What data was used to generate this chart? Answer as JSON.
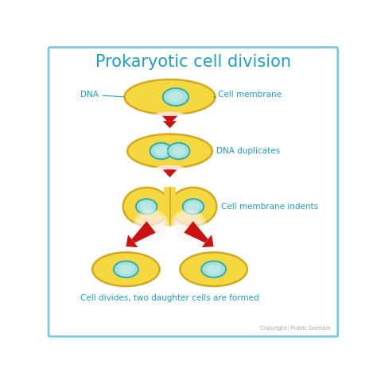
{
  "title": "Prokaryotic cell division",
  "title_color": "#1B9FCC",
  "title_fontsize": 15,
  "bg_color": "#FFFFFF",
  "border_color": "#7DC8E0",
  "text_color": "#1B9FCC",
  "cell_fill": "#F5D840",
  "cell_edge": "#D4A820",
  "dna_fill_alpha": 0.25,
  "dna_stroke": "#2AAFAF",
  "arrow_color": "#CC1111",
  "label_dna": "DNA",
  "label_membrane": "Cell membrane",
  "label_stage2": "DNA duplicates",
  "label_stage3": "Cell membrane indents",
  "label_stage4": "Cell divides, two daughter cells are formed",
  "copyright": "Copyright: Public Domain"
}
